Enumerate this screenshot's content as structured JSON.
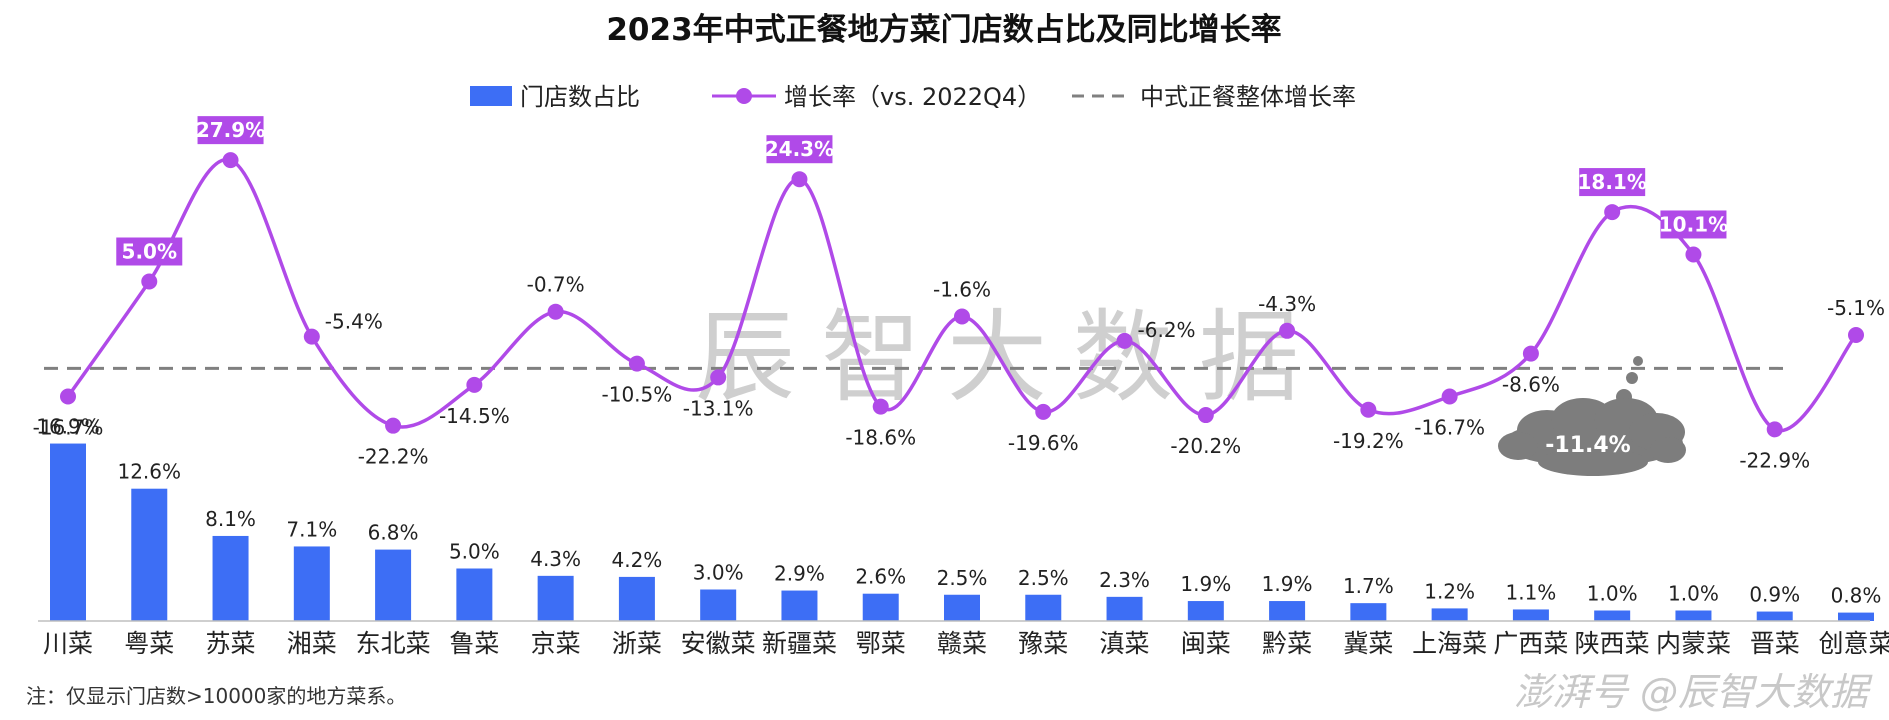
{
  "chart_data": {
    "type": "bar",
    "title": "2023年中式正餐地方菜门店数占比及同比增长率",
    "categories": [
      "川菜",
      "粤菜",
      "苏菜",
      "湘菜",
      "东北菜",
      "鲁菜",
      "京菜",
      "浙菜",
      "安徽菜",
      "新疆菜",
      "鄂菜",
      "赣菜",
      "豫菜",
      "滇菜",
      "闽菜",
      "黔菜",
      "冀菜",
      "上海菜",
      "广西菜",
      "陕西菜",
      "内蒙菜",
      "晋菜",
      "创意菜"
    ],
    "series": [
      {
        "name": "门店数占比",
        "type": "bar",
        "color": "#3d6ef5",
        "values": [
          16.9,
          12.6,
          8.1,
          7.1,
          6.8,
          5.0,
          4.3,
          4.2,
          3.0,
          2.9,
          2.6,
          2.5,
          2.5,
          2.3,
          1.9,
          1.9,
          1.7,
          1.2,
          1.1,
          1.0,
          1.0,
          0.9,
          0.8
        ],
        "labels": [
          "16.9%",
          "12.6%",
          "8.1%",
          "7.1%",
          "6.8%",
          "5.0%",
          "4.3%",
          "4.2%",
          "3.0%",
          "2.9%",
          "2.6%",
          "2.5%",
          "2.5%",
          "2.3%",
          "1.9%",
          "1.9%",
          "1.7%",
          "1.2%",
          "1.1%",
          "1.0%",
          "1.0%",
          "0.9%",
          "0.8%"
        ]
      },
      {
        "name": "增长率（vs. 2022Q4）",
        "type": "line",
        "color": "#b04ae8",
        "values": [
          -16.7,
          5.0,
          27.9,
          -5.4,
          -22.2,
          -14.5,
          -0.7,
          -10.5,
          -13.1,
          24.3,
          -18.6,
          -1.6,
          -19.6,
          -6.2,
          -20.2,
          -4.3,
          -19.2,
          -16.7,
          -8.6,
          18.1,
          10.1,
          -22.9,
          -5.1
        ],
        "labels": [
          "-16.7%",
          "5.0%",
          "27.9%",
          "-5.4%",
          "-22.2%",
          "-14.5%",
          "-0.7%",
          "-10.5%",
          "-13.1%",
          "24.3%",
          "-18.6%",
          "-1.6%",
          "-19.6%",
          "-6.2%",
          "-20.2%",
          "-4.3%",
          "-19.2%",
          "-16.7%",
          "-8.6%",
          "18.1%",
          "10.1%",
          "-22.9%",
          "-5.1%"
        ],
        "highlighted": [
          false,
          true,
          true,
          false,
          false,
          false,
          false,
          false,
          false,
          true,
          false,
          false,
          false,
          false,
          false,
          false,
          false,
          false,
          false,
          true,
          true,
          false,
          false
        ]
      },
      {
        "name": "中式正餐整体增长率",
        "type": "reference-line",
        "color": "#808080",
        "value": -11.4,
        "label": "-11.4%"
      }
    ],
    "legend_position": "top-center",
    "grid": false
  },
  "note": "注：仅显示门店数>10000家的地方菜系。",
  "watermark": "辰智大数据",
  "source_watermark": "澎湃号 @辰智大数据",
  "colors": {
    "bar": "#3d6ef5",
    "line": "#b04ae8",
    "reference": "#808080",
    "cloud": "#7d7d7d"
  }
}
